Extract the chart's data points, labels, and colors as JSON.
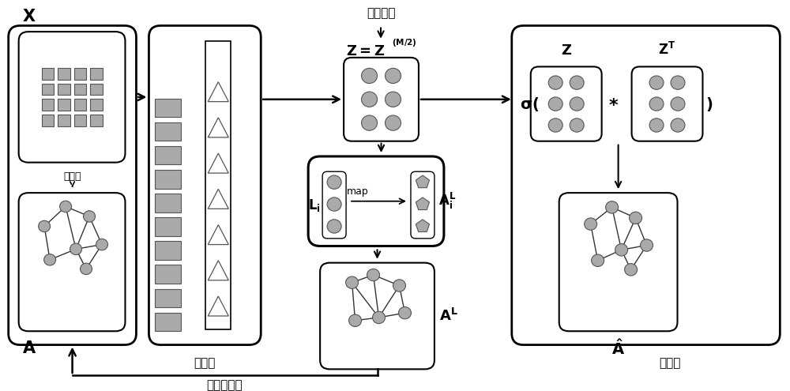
{
  "bg_color": "#ffffff",
  "figsize": [
    10.0,
    4.95
  ],
  "dpi": 100,
  "label_latent": "潜在表示",
  "label_encoder": "编码层",
  "label_adaptive": "自适应更新",
  "label_decoder": "解码层",
  "label_init": "初始化",
  "label_map": "map",
  "node_color": "#aaaaaa",
  "node_edge_color": "#555555",
  "sq_color": "#aaaaaa"
}
